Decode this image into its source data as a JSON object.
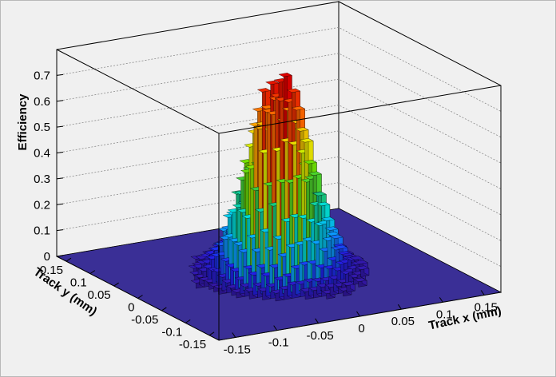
{
  "chart_data": {
    "type": "lego3d",
    "title": "",
    "xlabel": "Track x (mm)",
    "ylabel": "Track y (mm)",
    "zlabel": "Efficiency",
    "xlim": [
      -0.17,
      0.17
    ],
    "ylim": [
      -0.17,
      0.17
    ],
    "zlim": [
      0,
      0.8
    ],
    "x_ticks": [
      "-0.15",
      "-0.1",
      "-0.05",
      "0",
      "0.05",
      "0.1",
      "0.15"
    ],
    "x_tick_values": [
      -0.15,
      -0.1,
      -0.05,
      0,
      0.05,
      0.1,
      0.15
    ],
    "y_ticks": [
      "0.15",
      "0.1",
      "0.05",
      "0",
      "-0.05",
      "-0.1",
      "-0.15"
    ],
    "y_tick_values": [
      0.15,
      0.1,
      0.05,
      0,
      -0.05,
      -0.1,
      -0.15
    ],
    "z_ticks": [
      "0",
      "0.1",
      "0.2",
      "0.3",
      "0.4",
      "0.5",
      "0.6",
      "0.7"
    ],
    "z_tick_values": [
      0,
      0.1,
      0.2,
      0.3,
      0.4,
      0.5,
      0.6,
      0.7
    ],
    "bins": {
      "nx": 34,
      "ny": 34
    },
    "peak": {
      "x": 0,
      "y": 0,
      "value": 0.75,
      "width": 0.032
    },
    "floor_level": 0.012,
    "palette": [
      "#3a1590",
      "#2020ee",
      "#0aa0ff",
      "#00e0e0",
      "#20c060",
      "#70e000",
      "#e6f000",
      "#ffa000",
      "#ff4a00",
      "#dd0000"
    ],
    "colors": {
      "floor": "#3a2f96",
      "background": "#f0f0f0",
      "box_line": "#000000",
      "grid_line": "#8a8a8a"
    }
  }
}
